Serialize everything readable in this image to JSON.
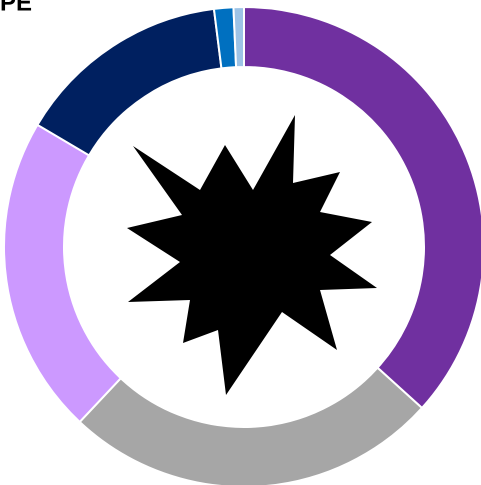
{
  "chart_data": {
    "type": "pie",
    "title": "PE",
    "categories": [
      null,
      null,
      null,
      null,
      null,
      null
    ],
    "values": [
      36.7,
      25.3,
      21.5,
      14.5,
      1.3,
      0.7
    ],
    "colors": [
      "#7030a0",
      "#a6a6a6",
      "#cc99ff",
      "#002060",
      "#0070c0",
      "#9dc3e6"
    ],
    "donut": true
  }
}
